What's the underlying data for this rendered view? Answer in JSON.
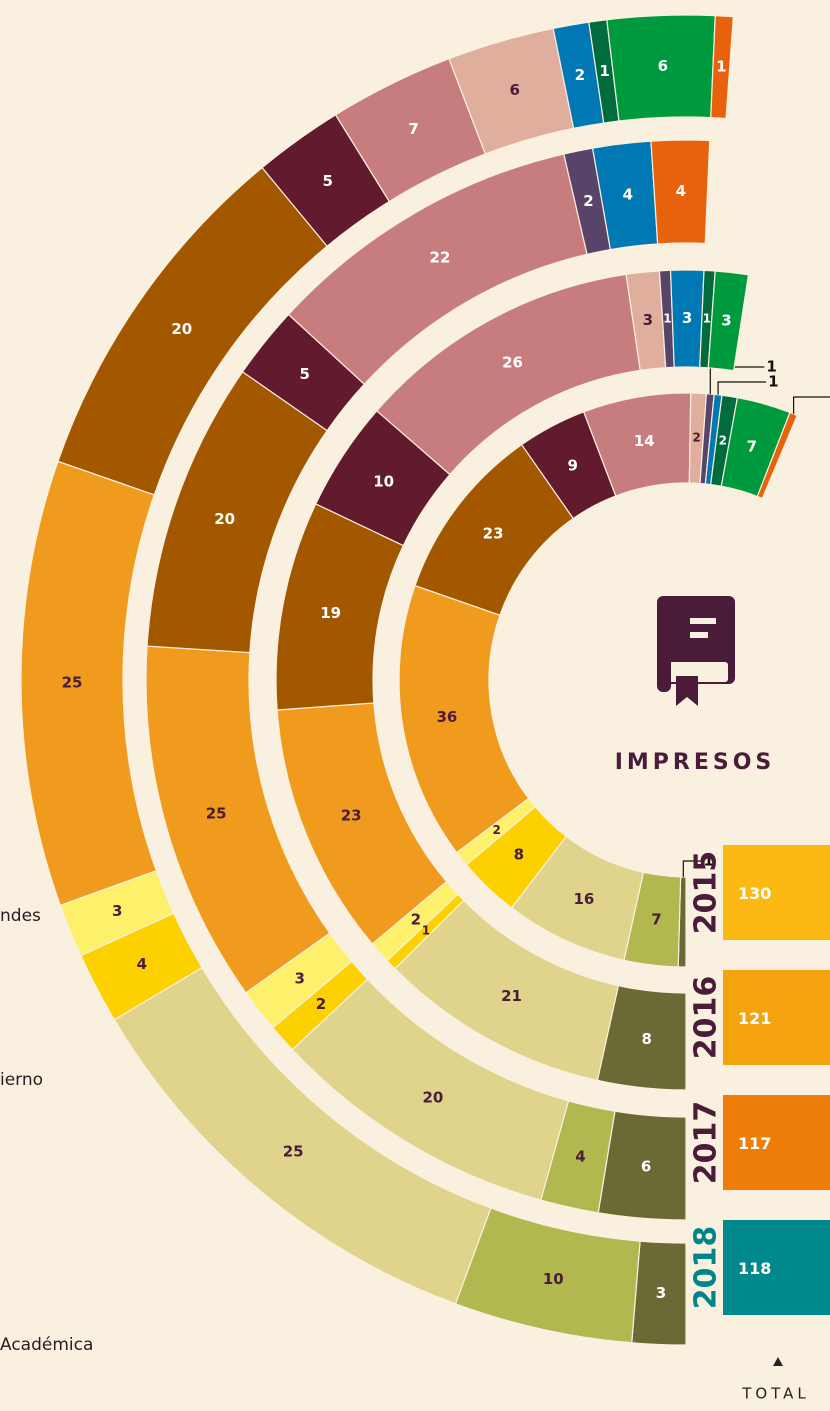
{
  "chart_data": {
    "type": "radial-stacked",
    "title": "IMPRESOS",
    "total_label": "TOTAL",
    "legend_labels": [
      "ndes",
      "ierno",
      "Académica"
    ],
    "series": [
      {
        "name": "2015",
        "name_color": "#4b1c3a",
        "total": 130,
        "total_color": "#fdb913",
        "values": [
          1,
          7,
          16,
          8,
          2,
          36,
          23,
          9,
          14,
          2,
          1,
          1,
          2,
          7,
          1
        ],
        "colors": [
          "#6b6a35",
          "#b0b84f",
          "#e0d48c",
          "#fdd000",
          "#fdf06a",
          "#f09a1e",
          "#a35800",
          "#621a2e",
          "#c77d7d",
          "#dfae9c",
          "#574468",
          "#0078b4",
          "#006b3c",
          "#009a3e",
          "#e8610d"
        ]
      },
      {
        "name": "2016",
        "name_color": "#4b1c3a",
        "total": 121,
        "total_color": "#f4a30f",
        "values": [
          8,
          21,
          1,
          2,
          23,
          19,
          10,
          26,
          3,
          1,
          3,
          1,
          3
        ],
        "colors": [
          "#6b6a35",
          "#e0d48c",
          "#fdd000",
          "#fdf06a",
          "#f09a1e",
          "#a35800",
          "#621a2e",
          "#c77d7d",
          "#dfae9c",
          "#574468",
          "#0078b4",
          "#006b3c",
          "#009a3e"
        ]
      },
      {
        "name": "2017",
        "name_color": "#4b1c3a",
        "total": 117,
        "total_color": "#ee7d0a",
        "values": [
          6,
          4,
          20,
          2,
          3,
          25,
          20,
          5,
          22,
          2,
          4,
          4
        ],
        "colors": [
          "#6b6a35",
          "#b0b84f",
          "#e0d48c",
          "#fdd000",
          "#fdf06a",
          "#f09a1e",
          "#a35800",
          "#621a2e",
          "#c77d7d",
          "#574468",
          "#0078b4",
          "#e8610d"
        ]
      },
      {
        "name": "2018",
        "name_color": "#00868a",
        "total": 118,
        "total_color": "#00898c",
        "values": [
          3,
          10,
          25,
          4,
          3,
          25,
          20,
          5,
          7,
          6,
          2,
          1,
          6,
          1
        ],
        "colors": [
          "#6b6a35",
          "#b0b84f",
          "#e0d48c",
          "#fdd000",
          "#fdf06a",
          "#f09a1e",
          "#a35800",
          "#621a2e",
          "#c77d7d",
          "#dfae9c",
          "#0078b4",
          "#006b3c",
          "#009a3e",
          "#e8610d"
        ]
      }
    ]
  }
}
